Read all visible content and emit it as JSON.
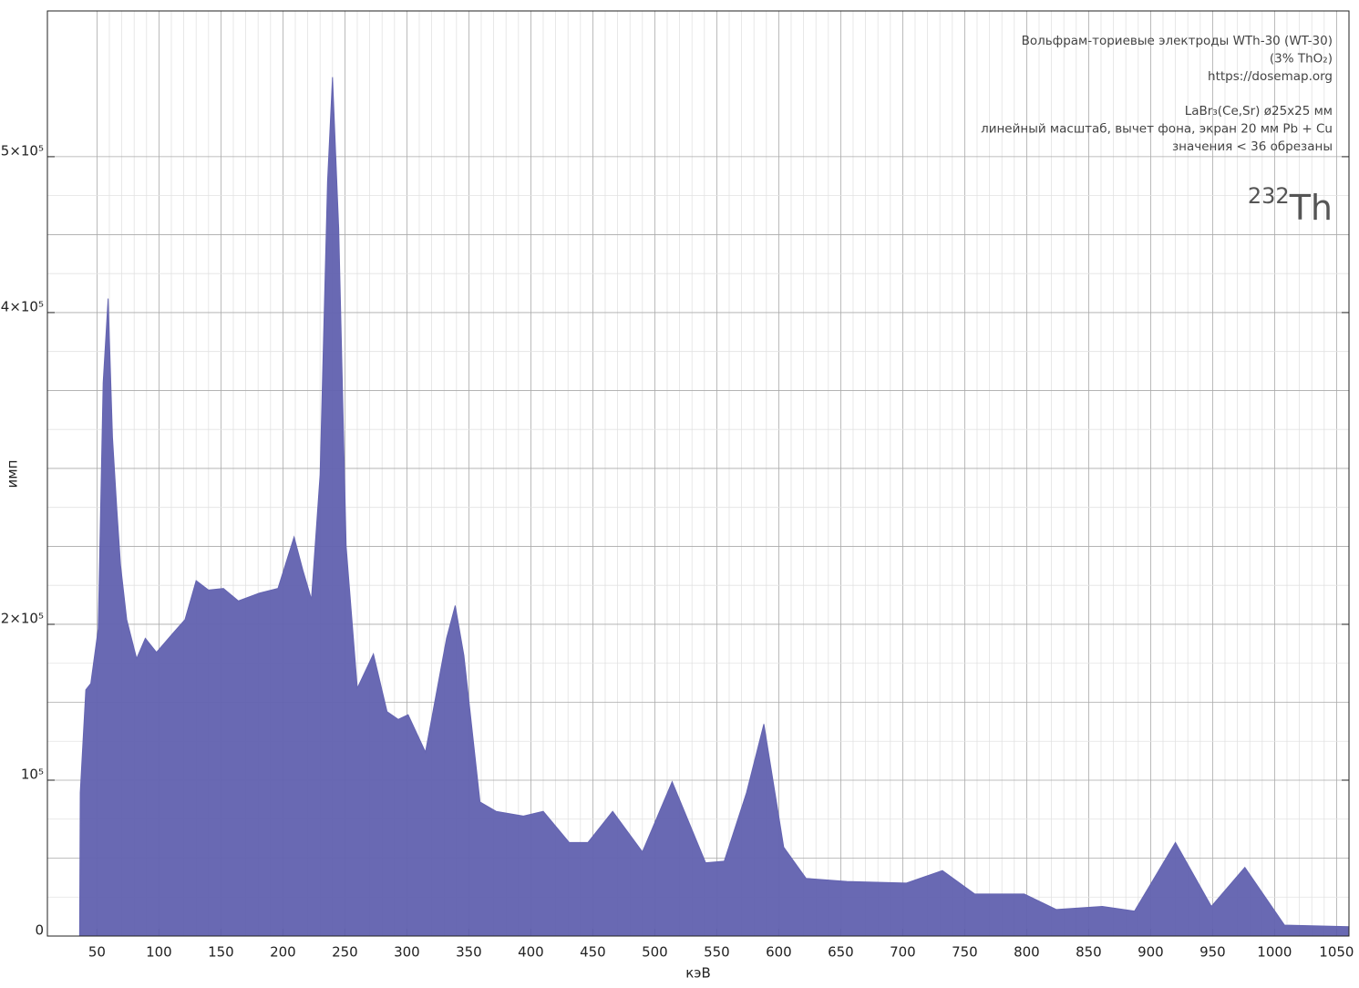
{
  "chart_data": {
    "type": "area",
    "title_lines": [
      "Вольфрам-ториевые электроды WTh-30 (WT-30)",
      "(3% ThO₂)",
      "https://dosemap.org",
      "LaBr₃(Ce,Sr) ø25x25 мм",
      "линейный масштаб, вычет фона, экран 20 мм Pb + Cu",
      "значения < 36 обрезаны"
    ],
    "isotope": {
      "mass": "232",
      "symbol": "Th"
    },
    "x_label": "кэВ",
    "y_label": "имп",
    "color": "#6464b1",
    "x": [
      36,
      36.5,
      41,
      45,
      51,
      55,
      59,
      62.5,
      66,
      69,
      74,
      82,
      89,
      98,
      111,
      121,
      130,
      140,
      152,
      164,
      181,
      196,
      209,
      216,
      223,
      230,
      236,
      240,
      245,
      251,
      260,
      273,
      284,
      293,
      301,
      315,
      332,
      339,
      346,
      359,
      372,
      394,
      410,
      431,
      446,
      466,
      490,
      514,
      541,
      556,
      574,
      588,
      604,
      622,
      655,
      703,
      732,
      758,
      798,
      824,
      861,
      887,
      920,
      949,
      976,
      1008,
      1060
    ],
    "values": [
      0,
      92000,
      158000,
      162000,
      197000,
      355000,
      409000,
      320000,
      274000,
      238000,
      203000,
      178000,
      191000,
      182000,
      194000,
      203000,
      228000,
      222000,
      223000,
      215000,
      220000,
      223000,
      256000,
      235000,
      216000,
      296000,
      484000,
      551000,
      454000,
      250000,
      159000,
      181000,
      144000,
      139000,
      142000,
      118000,
      191000,
      212000,
      180000,
      86000,
      80000,
      77000,
      80000,
      60000,
      60000,
      80000,
      54000,
      99000,
      47000,
      48000,
      92000,
      136000,
      57000,
      37000,
      35000,
      34000,
      42000,
      27000,
      27000,
      17000,
      19000,
      16000,
      60000,
      19000,
      44000,
      7000,
      6000
    ],
    "xlim": [
      10,
      1060
    ],
    "ylim": [
      0,
      593500
    ],
    "xticks": [
      50,
      100,
      150,
      200,
      250,
      300,
      350,
      400,
      450,
      500,
      550,
      600,
      650,
      700,
      750,
      800,
      850,
      900,
      950,
      1000,
      1050
    ],
    "yticks": [
      0,
      {
        "value": 100000,
        "label": "10⁵"
      },
      {
        "value": 200000,
        "label": "2×10⁵"
      },
      {
        "value": 400000,
        "label": "4×10⁵"
      },
      {
        "value": 500000,
        "label": "5×10⁵"
      }
    ],
    "grid": true
  }
}
